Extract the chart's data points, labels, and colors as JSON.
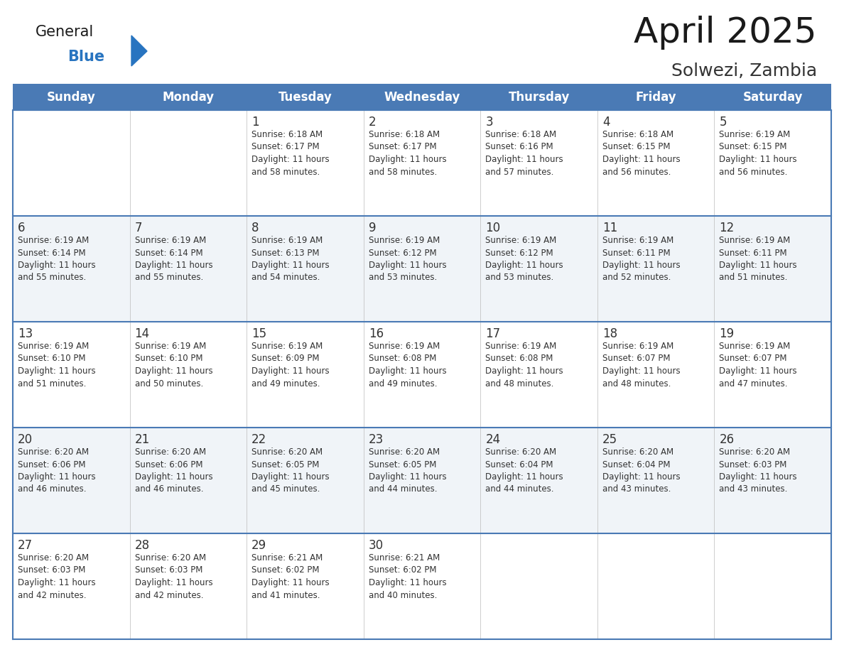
{
  "title": "April 2025",
  "subtitle": "Solwezi, Zambia",
  "header_bg_color": "#4a7ab5",
  "header_text_color": "#ffffff",
  "days_of_week": [
    "Sunday",
    "Monday",
    "Tuesday",
    "Wednesday",
    "Thursday",
    "Friday",
    "Saturday"
  ],
  "row_bg_even": "#f0f4f8",
  "row_bg_odd": "#ffffff",
  "divider_color": "#4a7ab5",
  "text_color": "#333333",
  "title_color": "#1a1a1a",
  "subtitle_color": "#333333",
  "logo_general_color": "#1a1a1a",
  "logo_blue_color": "#2874c0",
  "cell_text_color": "#333333",
  "calendar_data": [
    [
      {
        "day": null,
        "info": ""
      },
      {
        "day": null,
        "info": ""
      },
      {
        "day": 1,
        "info": "Sunrise: 6:18 AM\nSunset: 6:17 PM\nDaylight: 11 hours\nand 58 minutes."
      },
      {
        "day": 2,
        "info": "Sunrise: 6:18 AM\nSunset: 6:17 PM\nDaylight: 11 hours\nand 58 minutes."
      },
      {
        "day": 3,
        "info": "Sunrise: 6:18 AM\nSunset: 6:16 PM\nDaylight: 11 hours\nand 57 minutes."
      },
      {
        "day": 4,
        "info": "Sunrise: 6:18 AM\nSunset: 6:15 PM\nDaylight: 11 hours\nand 56 minutes."
      },
      {
        "day": 5,
        "info": "Sunrise: 6:19 AM\nSunset: 6:15 PM\nDaylight: 11 hours\nand 56 minutes."
      }
    ],
    [
      {
        "day": 6,
        "info": "Sunrise: 6:19 AM\nSunset: 6:14 PM\nDaylight: 11 hours\nand 55 minutes."
      },
      {
        "day": 7,
        "info": "Sunrise: 6:19 AM\nSunset: 6:14 PM\nDaylight: 11 hours\nand 55 minutes."
      },
      {
        "day": 8,
        "info": "Sunrise: 6:19 AM\nSunset: 6:13 PM\nDaylight: 11 hours\nand 54 minutes."
      },
      {
        "day": 9,
        "info": "Sunrise: 6:19 AM\nSunset: 6:12 PM\nDaylight: 11 hours\nand 53 minutes."
      },
      {
        "day": 10,
        "info": "Sunrise: 6:19 AM\nSunset: 6:12 PM\nDaylight: 11 hours\nand 53 minutes."
      },
      {
        "day": 11,
        "info": "Sunrise: 6:19 AM\nSunset: 6:11 PM\nDaylight: 11 hours\nand 52 minutes."
      },
      {
        "day": 12,
        "info": "Sunrise: 6:19 AM\nSunset: 6:11 PM\nDaylight: 11 hours\nand 51 minutes."
      }
    ],
    [
      {
        "day": 13,
        "info": "Sunrise: 6:19 AM\nSunset: 6:10 PM\nDaylight: 11 hours\nand 51 minutes."
      },
      {
        "day": 14,
        "info": "Sunrise: 6:19 AM\nSunset: 6:10 PM\nDaylight: 11 hours\nand 50 minutes."
      },
      {
        "day": 15,
        "info": "Sunrise: 6:19 AM\nSunset: 6:09 PM\nDaylight: 11 hours\nand 49 minutes."
      },
      {
        "day": 16,
        "info": "Sunrise: 6:19 AM\nSunset: 6:08 PM\nDaylight: 11 hours\nand 49 minutes."
      },
      {
        "day": 17,
        "info": "Sunrise: 6:19 AM\nSunset: 6:08 PM\nDaylight: 11 hours\nand 48 minutes."
      },
      {
        "day": 18,
        "info": "Sunrise: 6:19 AM\nSunset: 6:07 PM\nDaylight: 11 hours\nand 48 minutes."
      },
      {
        "day": 19,
        "info": "Sunrise: 6:19 AM\nSunset: 6:07 PM\nDaylight: 11 hours\nand 47 minutes."
      }
    ],
    [
      {
        "day": 20,
        "info": "Sunrise: 6:20 AM\nSunset: 6:06 PM\nDaylight: 11 hours\nand 46 minutes."
      },
      {
        "day": 21,
        "info": "Sunrise: 6:20 AM\nSunset: 6:06 PM\nDaylight: 11 hours\nand 46 minutes."
      },
      {
        "day": 22,
        "info": "Sunrise: 6:20 AM\nSunset: 6:05 PM\nDaylight: 11 hours\nand 45 minutes."
      },
      {
        "day": 23,
        "info": "Sunrise: 6:20 AM\nSunset: 6:05 PM\nDaylight: 11 hours\nand 44 minutes."
      },
      {
        "day": 24,
        "info": "Sunrise: 6:20 AM\nSunset: 6:04 PM\nDaylight: 11 hours\nand 44 minutes."
      },
      {
        "day": 25,
        "info": "Sunrise: 6:20 AM\nSunset: 6:04 PM\nDaylight: 11 hours\nand 43 minutes."
      },
      {
        "day": 26,
        "info": "Sunrise: 6:20 AM\nSunset: 6:03 PM\nDaylight: 11 hours\nand 43 minutes."
      }
    ],
    [
      {
        "day": 27,
        "info": "Sunrise: 6:20 AM\nSunset: 6:03 PM\nDaylight: 11 hours\nand 42 minutes."
      },
      {
        "day": 28,
        "info": "Sunrise: 6:20 AM\nSunset: 6:03 PM\nDaylight: 11 hours\nand 42 minutes."
      },
      {
        "day": 29,
        "info": "Sunrise: 6:21 AM\nSunset: 6:02 PM\nDaylight: 11 hours\nand 41 minutes."
      },
      {
        "day": 30,
        "info": "Sunrise: 6:21 AM\nSunset: 6:02 PM\nDaylight: 11 hours\nand 40 minutes."
      },
      {
        "day": null,
        "info": ""
      },
      {
        "day": null,
        "info": ""
      },
      {
        "day": null,
        "info": ""
      }
    ]
  ],
  "fig_width": 11.88,
  "fig_height": 9.18,
  "dpi": 100
}
